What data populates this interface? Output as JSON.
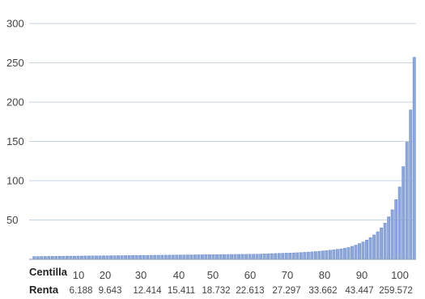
{
  "chart_data": {
    "type": "bar",
    "title": "",
    "xlabel": "Centilla",
    "ylabel": "",
    "ylim": [
      0,
      300
    ],
    "yticks": [
      50,
      100,
      150,
      200,
      250,
      300
    ],
    "grid": true,
    "x_tick_labels": [
      "10",
      "20",
      "30",
      "40",
      "50",
      "60",
      "70",
      "80",
      "90",
      "100"
    ],
    "renta_label": "Renta",
    "renta_values": [
      "6.188",
      "9.643",
      "12.414",
      "15.411",
      "18.732",
      "22.613",
      "27.297",
      "33.662",
      "43.447",
      "259.572"
    ],
    "values": [
      3.5,
      3.5,
      3.6,
      3.6,
      3.7,
      3.7,
      3.8,
      3.8,
      3.9,
      4.0,
      4.0,
      4.0,
      4.1,
      4.1,
      4.2,
      4.2,
      4.3,
      4.3,
      4.3,
      4.4,
      4.4,
      4.5,
      4.5,
      4.6,
      4.6,
      4.7,
      4.7,
      4.8,
      4.8,
      4.9,
      4.9,
      5.0,
      5.0,
      5.1,
      5.1,
      5.2,
      5.2,
      5.3,
      5.3,
      5.4,
      5.4,
      5.5,
      5.5,
      5.6,
      5.6,
      5.7,
      5.7,
      5.8,
      5.8,
      5.9,
      5.9,
      6.0,
      6.0,
      6.1,
      6.1,
      6.2,
      6.2,
      6.3,
      6.3,
      6.4,
      6.4,
      6.5,
      6.6,
      6.8,
      7.0,
      7.2,
      7.3,
      7.5,
      7.6,
      7.8,
      7.9,
      8.1,
      8.3,
      8.5,
      8.8,
      9.1,
      9.4,
      9.8,
      10.2,
      10.6,
      11.0,
      11.5,
      12.0,
      12.6,
      13.2,
      14.0,
      15.0,
      16.5,
      18.0,
      20.0,
      22.0,
      24.5,
      27.5,
      31.0,
      35.0,
      40.0,
      46.0,
      54.0,
      63.0,
      76.0,
      92.0,
      118.0,
      149.0,
      190.0,
      257.0
    ]
  }
}
